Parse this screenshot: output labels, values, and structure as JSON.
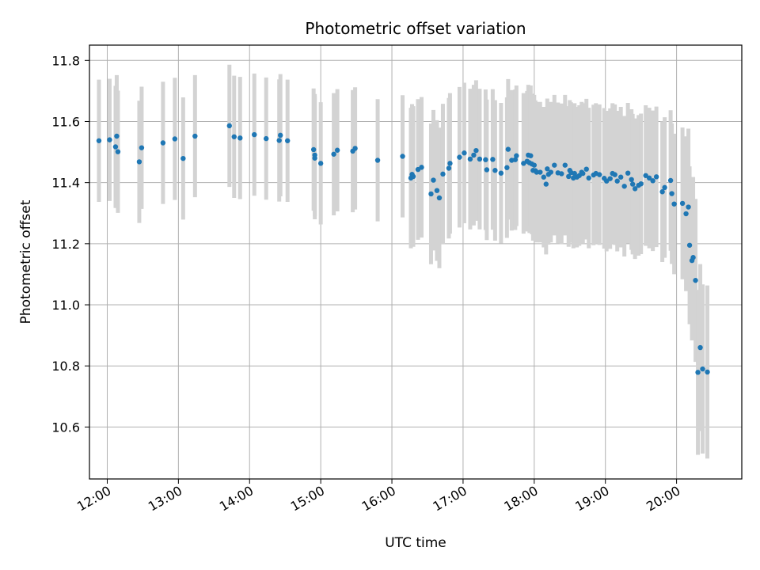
{
  "chart_data": {
    "type": "scatter",
    "title": "Photometric offset variation",
    "xlabel": "UTC time",
    "ylabel": "Photometric offset",
    "x_unit": "UTC hours",
    "xlim": [
      "11:45",
      "20:55"
    ],
    "ylim": [
      10.43,
      11.85
    ],
    "x_ticks": [
      "12:00",
      "13:00",
      "14:00",
      "15:00",
      "16:00",
      "17:00",
      "18:00",
      "19:00",
      "20:00"
    ],
    "y_ticks": [
      "10.6",
      "10.8",
      "11.0",
      "11.2",
      "11.4",
      "11.6",
      "11.8"
    ],
    "grid": true,
    "point_color": "#1f77b4",
    "errorbar_color": "#d3d3d3",
    "series": [
      {
        "x": [
          "11:53",
          "12:02",
          "12:07",
          "12:08",
          "12:09",
          "12:27",
          "12:29",
          "12:47",
          "12:57",
          "13:04",
          "13:14",
          "13:43",
          "13:47",
          "13:52",
          "14:04",
          "14:14",
          "14:25",
          "14:26",
          "14:32",
          "14:54",
          "14:55",
          "14:55",
          "15:00",
          "15:11",
          "15:14",
          "15:27",
          "15:29",
          "15:48",
          "16:09",
          "16:16",
          "16:17",
          "16:18",
          "16:22",
          "16:25",
          "16:33",
          "16:35",
          "16:38",
          "16:40",
          "16:43",
          "16:48",
          "16:49",
          "16:57",
          "17:01",
          "17:06",
          "17:09",
          "17:11",
          "17:14",
          "17:19",
          "17:20",
          "17:25",
          "17:27",
          "17:32",
          "17:37",
          "17:38",
          "17:41",
          "17:44",
          "17:45",
          "17:51",
          "17:54",
          "17:55",
          "17:56",
          "17:57",
          "17:58",
          "17:59",
          "18:00",
          "18:01",
          "18:02",
          "18:05",
          "18:08",
          "18:10",
          "18:11",
          "18:12",
          "18:14",
          "18:17",
          "18:20",
          "18:23",
          "18:26",
          "18:29",
          "18:30",
          "18:31",
          "18:33",
          "18:34",
          "18:36",
          "18:38",
          "18:40",
          "18:41",
          "18:44",
          "18:46",
          "18:50",
          "18:52",
          "18:55",
          "18:59",
          "19:01",
          "19:04",
          "19:06",
          "19:08",
          "19:10",
          "19:13",
          "19:16",
          "19:19",
          "19:22",
          "19:23",
          "19:25",
          "19:28",
          "19:30",
          "19:34",
          "19:37",
          "19:40",
          "19:43",
          "19:48",
          "19:50",
          "19:55",
          "19:56",
          "19:58",
          "20:05",
          "20:08",
          "20:10",
          "20:11",
          "20:13",
          "20:14",
          "20:16",
          "20:18",
          "20:20",
          "20:22",
          "20:26"
        ],
        "y": [
          11.537,
          11.54,
          11.517,
          11.552,
          11.501,
          11.468,
          11.514,
          11.53,
          11.543,
          11.479,
          11.552,
          11.586,
          11.55,
          11.546,
          11.557,
          11.544,
          11.538,
          11.555,
          11.537,
          11.508,
          11.49,
          11.48,
          11.463,
          11.493,
          11.506,
          11.503,
          11.512,
          11.473,
          11.486,
          11.415,
          11.427,
          11.42,
          11.443,
          11.45,
          11.363,
          11.408,
          11.374,
          11.35,
          11.428,
          11.447,
          11.463,
          11.483,
          11.497,
          11.477,
          11.49,
          11.505,
          11.477,
          11.475,
          11.442,
          11.476,
          11.44,
          11.431,
          11.449,
          11.509,
          11.473,
          11.475,
          11.488,
          11.463,
          11.47,
          11.49,
          11.465,
          11.488,
          11.461,
          11.44,
          11.457,
          11.439,
          11.434,
          11.434,
          11.418,
          11.395,
          11.445,
          11.427,
          11.434,
          11.457,
          11.432,
          11.429,
          11.457,
          11.42,
          11.44,
          11.433,
          11.415,
          11.43,
          11.418,
          11.423,
          11.434,
          11.43,
          11.444,
          11.415,
          11.425,
          11.43,
          11.426,
          11.414,
          11.405,
          11.413,
          11.43,
          11.426,
          11.405,
          11.418,
          11.388,
          11.431,
          11.41,
          11.395,
          11.38,
          11.391,
          11.396,
          11.423,
          11.415,
          11.406,
          11.419,
          11.37,
          11.384,
          11.407,
          11.364,
          11.33,
          11.332,
          11.298,
          11.32,
          11.195,
          11.145,
          11.155,
          11.08,
          10.779,
          10.86,
          10.79,
          10.78
        ]
      }
    ]
  }
}
